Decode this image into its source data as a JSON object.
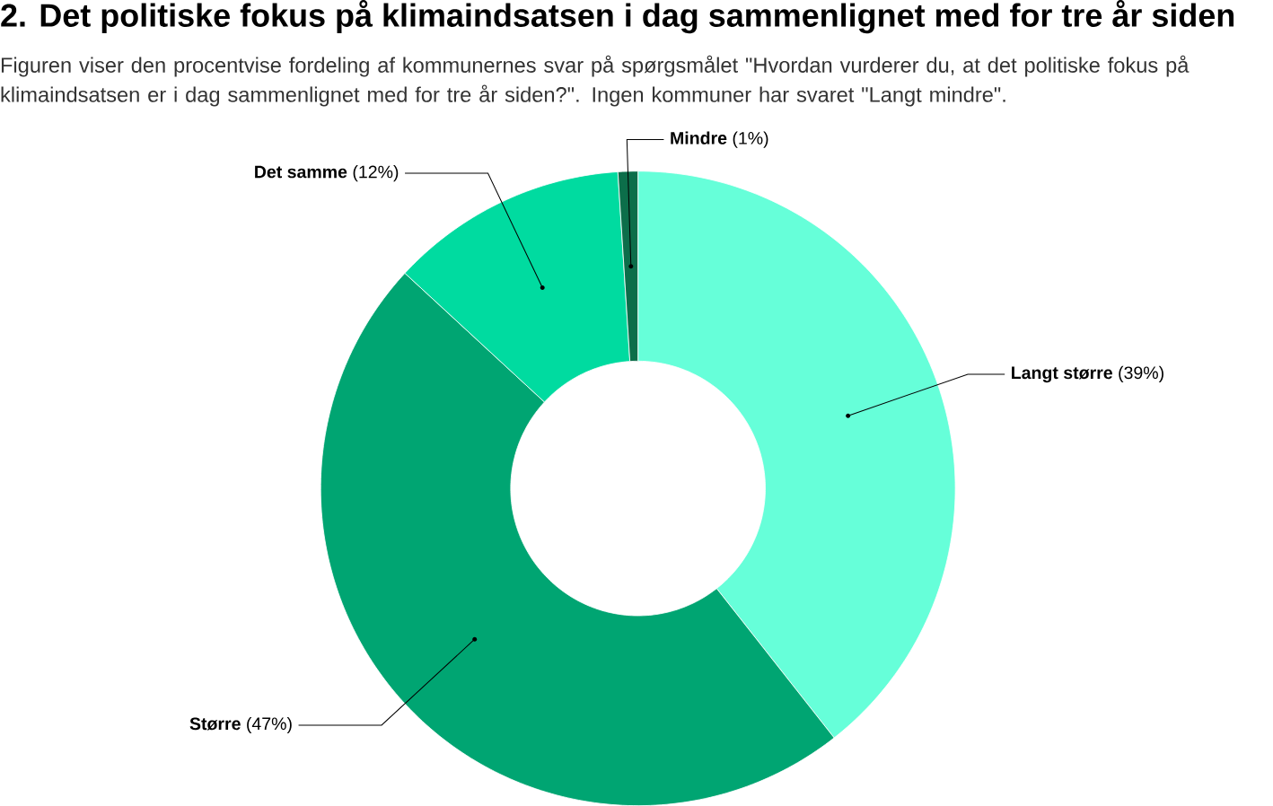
{
  "chart_data": {
    "type": "donut",
    "title": "2. Det politiske fokus på klimaindsatsen i dag sammenlignet med for tre år siden",
    "subtitle": "Figuren viser den procentvise fordeling af kommunernes svar på spørgsmålet \"Hvordan vurderer du, at det politiske fokus på klimaindsatsen er i dag sammenlignet med for tre år siden?\". Ingen kommuner har svaret \"Langt mindre\".",
    "categories": [
      "Langt større",
      "Større",
      "Det samme",
      "Mindre"
    ],
    "values": [
      39,
      47,
      12,
      1
    ],
    "colors": [
      "#66ffd9",
      "#00a572",
      "#00dba0",
      "#0c6e4a"
    ],
    "value_labels": [
      "(39%)",
      "(47%)",
      "(12%)",
      "(1%)"
    ]
  }
}
